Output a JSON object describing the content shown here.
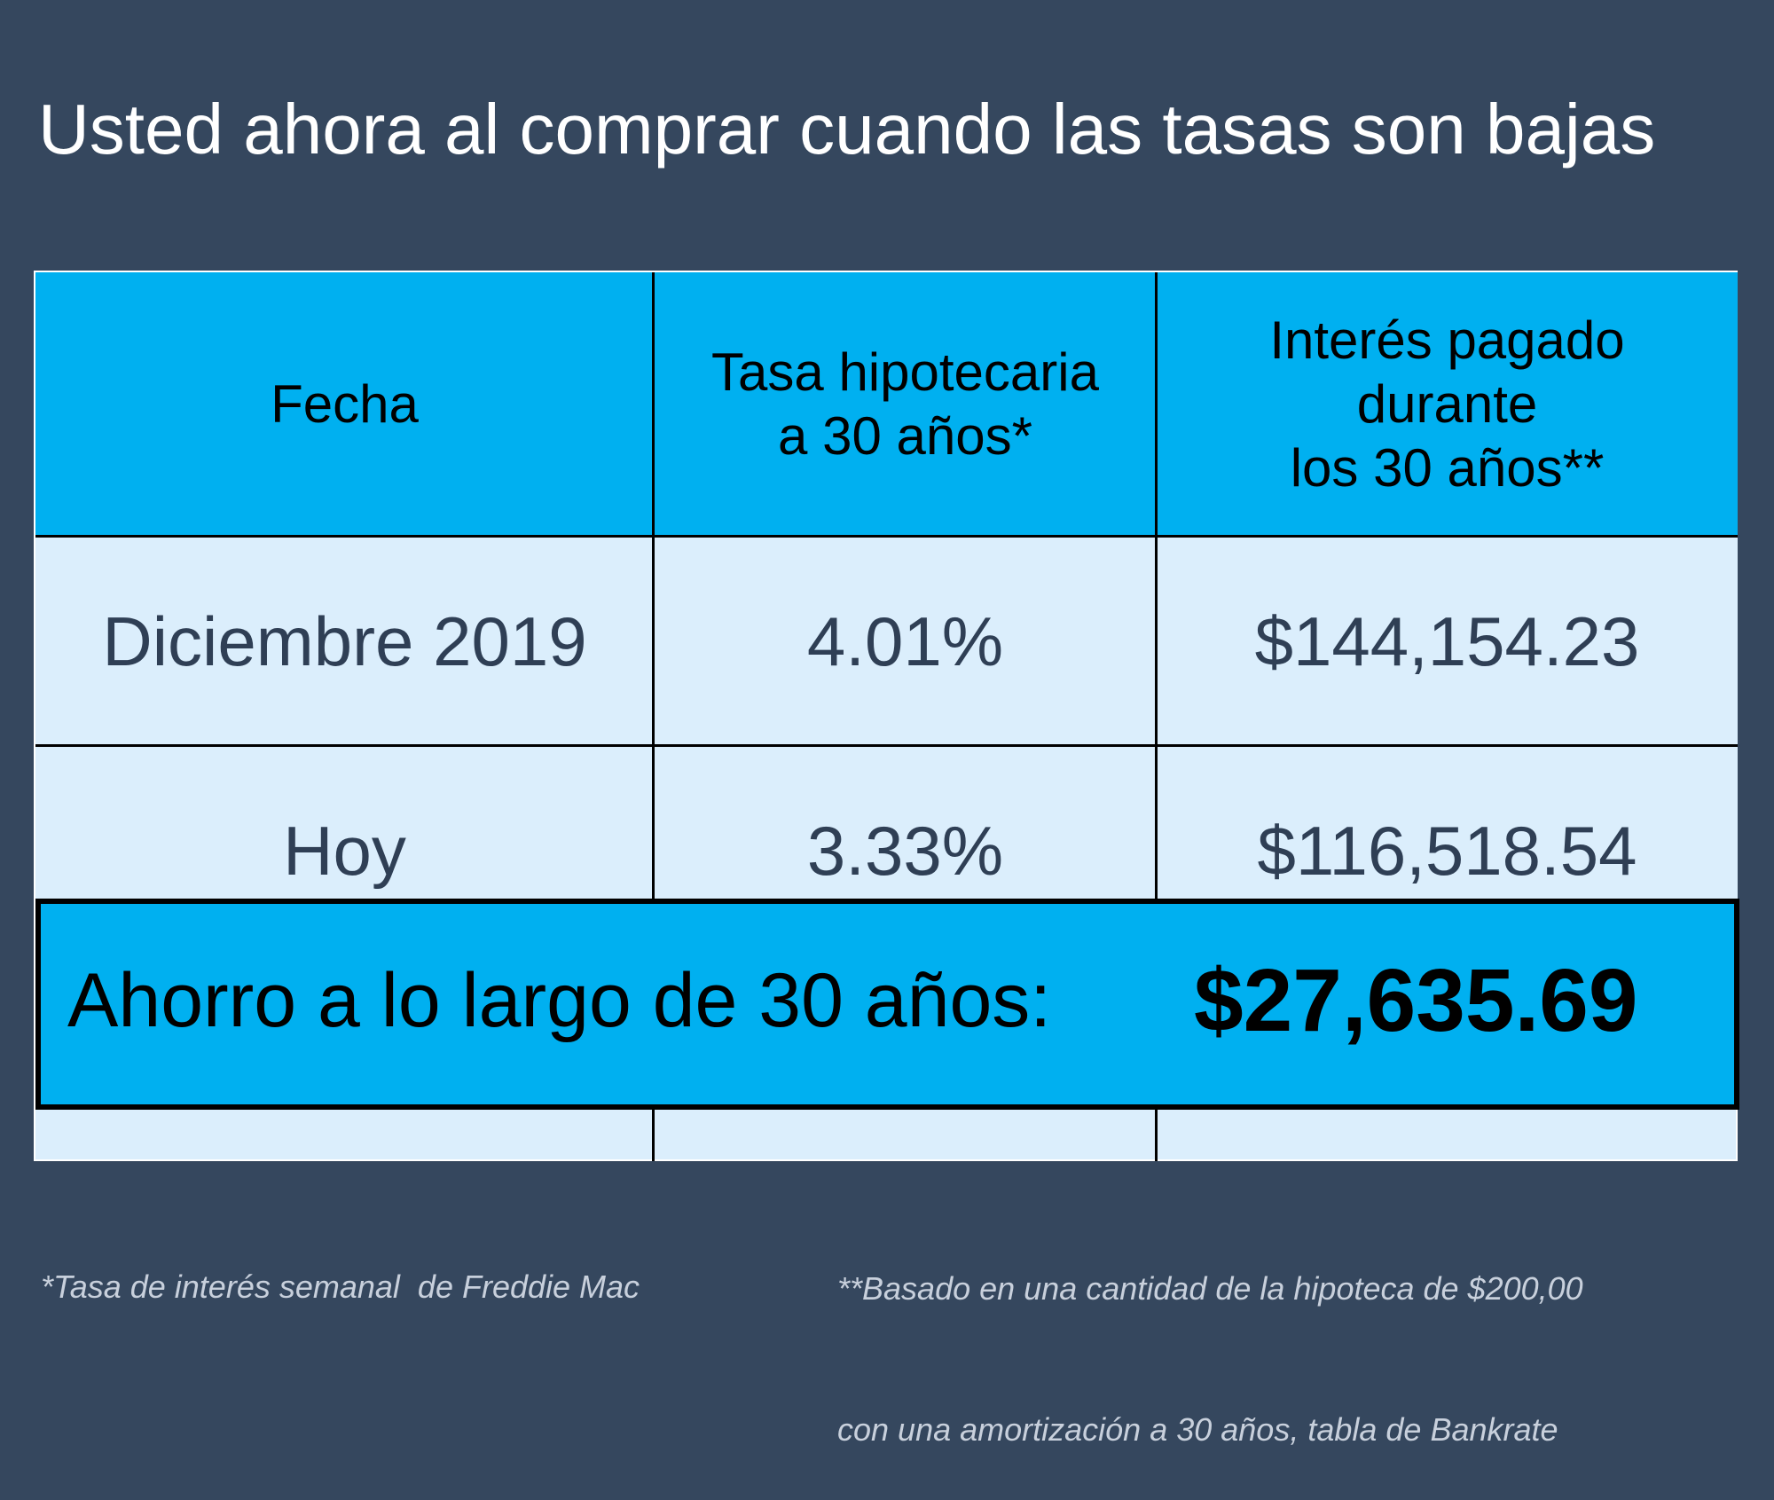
{
  "title": "Usted ahora al comprar cuando las tasas son bajas",
  "table": {
    "header": [
      [
        "Fecha"
      ],
      [
        "Tasa hipotecaria",
        "a 30 años*"
      ],
      [
        "Interés pagado",
        "durante",
        "los 30 años**"
      ]
    ],
    "rows": [
      [
        "Diciembre 2019",
        "4.01%",
        "$144,154.23"
      ],
      [
        "Hoy",
        "3.33%",
        "$116,518.54"
      ]
    ]
  },
  "savings": {
    "label": "Ahorro a lo largo de 30 años:",
    "amount": "$27,635.69"
  },
  "footnotes": [
    [
      "*Tasa de interés semanal  de Freddie Mac"
    ],
    [
      "**Basado en una cantidad de la hipoteca de $200,00",
      "con una amortización a 30 años, tabla de Bankrate"
    ]
  ]
}
